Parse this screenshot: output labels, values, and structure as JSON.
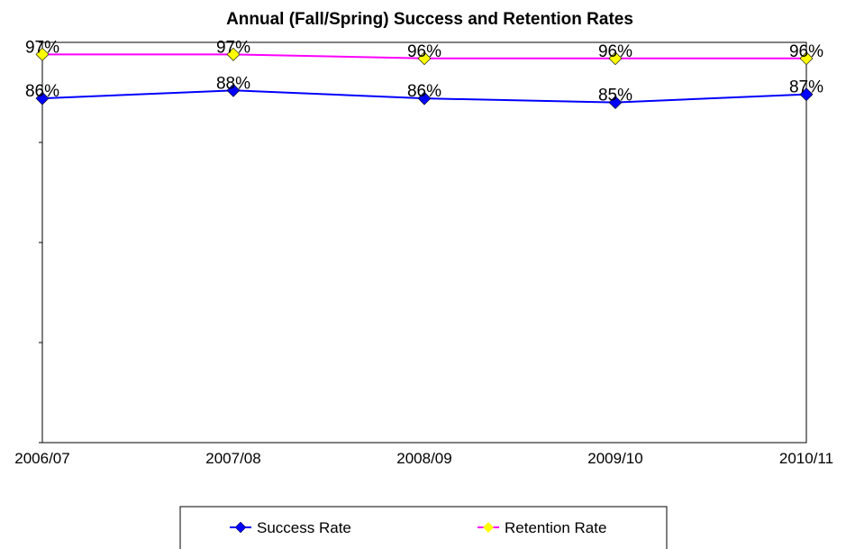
{
  "chart_data": {
    "type": "line",
    "title": "Annual (Fall/Spring) Success and Retention Rates",
    "categories": [
      "2006/07",
      "2007/08",
      "2008/09",
      "2009/10",
      "2010/11"
    ],
    "series": [
      {
        "name": "Success Rate",
        "values": [
          86,
          88,
          86,
          85,
          87
        ],
        "labels": [
          "86%",
          "88%",
          "86%",
          "85%",
          "87%"
        ],
        "line_color": "#0000FF",
        "marker_color": "#0000FF",
        "marker": "diamond"
      },
      {
        "name": "Retention Rate",
        "values": [
          97,
          97,
          96,
          96,
          96
        ],
        "labels": [
          "97%",
          "97%",
          "96%",
          "96%",
          "96%"
        ],
        "line_color": "#FF00FF",
        "marker_color": "#FFFF00",
        "marker": "diamond"
      }
    ],
    "xlabel": "",
    "ylabel": "",
    "ylim": [
      0,
      100
    ],
    "grid": false,
    "legend_position": "bottom"
  }
}
